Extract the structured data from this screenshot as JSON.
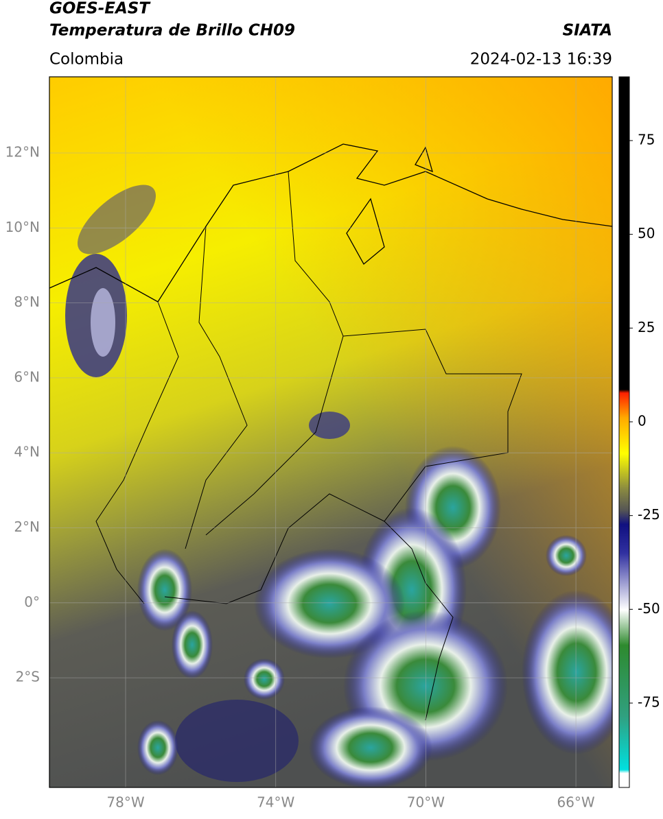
{
  "header": {
    "title": "GOES-EAST",
    "subtitle": "Temperatura de Brillo CH09",
    "region": "Colombia",
    "source": "SIATA",
    "timestamp": "2024-02-13 16:39"
  },
  "map": {
    "lat_labels": [
      "12°N",
      "10°N",
      "8°N",
      "6°N",
      "4°N",
      "2°N",
      "0°",
      "2°S"
    ],
    "lon_labels": [
      "78°W",
      "74°W",
      "70°W",
      "66°W"
    ]
  },
  "colorbar": {
    "range": [
      -97.5,
      92
    ],
    "ticks": [
      75,
      50,
      25,
      0,
      -25,
      -50,
      -75
    ]
  }
}
